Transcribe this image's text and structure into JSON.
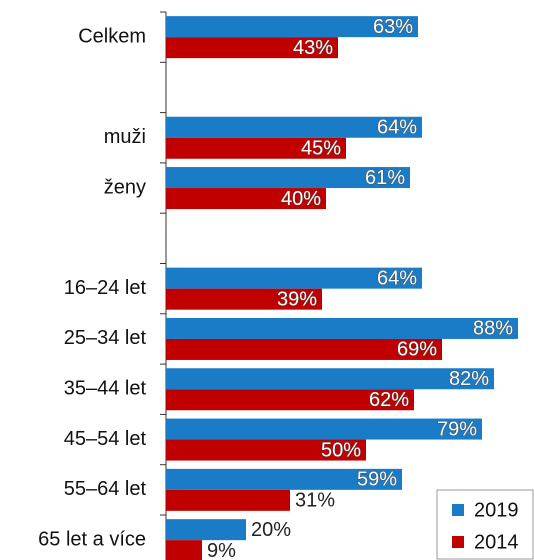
{
  "chart_data": {
    "type": "hbar",
    "categories": [
      "Celkem",
      null,
      "muži",
      "ženy",
      null,
      "16–24 let",
      "25–34 let",
      "35–44 let",
      "45–54 let",
      "55–64 let",
      "65 let a více"
    ],
    "series": [
      {
        "name": "2019",
        "color": "#1a7cc7",
        "values": [
          63,
          null,
          64,
          61,
          null,
          64,
          88,
          82,
          79,
          59,
          20
        ],
        "value_labels": [
          "63%",
          null,
          "64%",
          "61%",
          null,
          "64%",
          "88%",
          "82%",
          "79%",
          "59%",
          "20%"
        ]
      },
      {
        "name": "2014",
        "color": "#c00000",
        "values": [
          43,
          null,
          45,
          40,
          null,
          39,
          69,
          62,
          50,
          31,
          9
        ],
        "value_labels": [
          "43%",
          null,
          "45%",
          "40%",
          null,
          "39%",
          "69%",
          "62%",
          "50%",
          "31%",
          "9%"
        ]
      }
    ],
    "xlim": [
      0,
      90
    ],
    "legend": "bottom-right"
  }
}
